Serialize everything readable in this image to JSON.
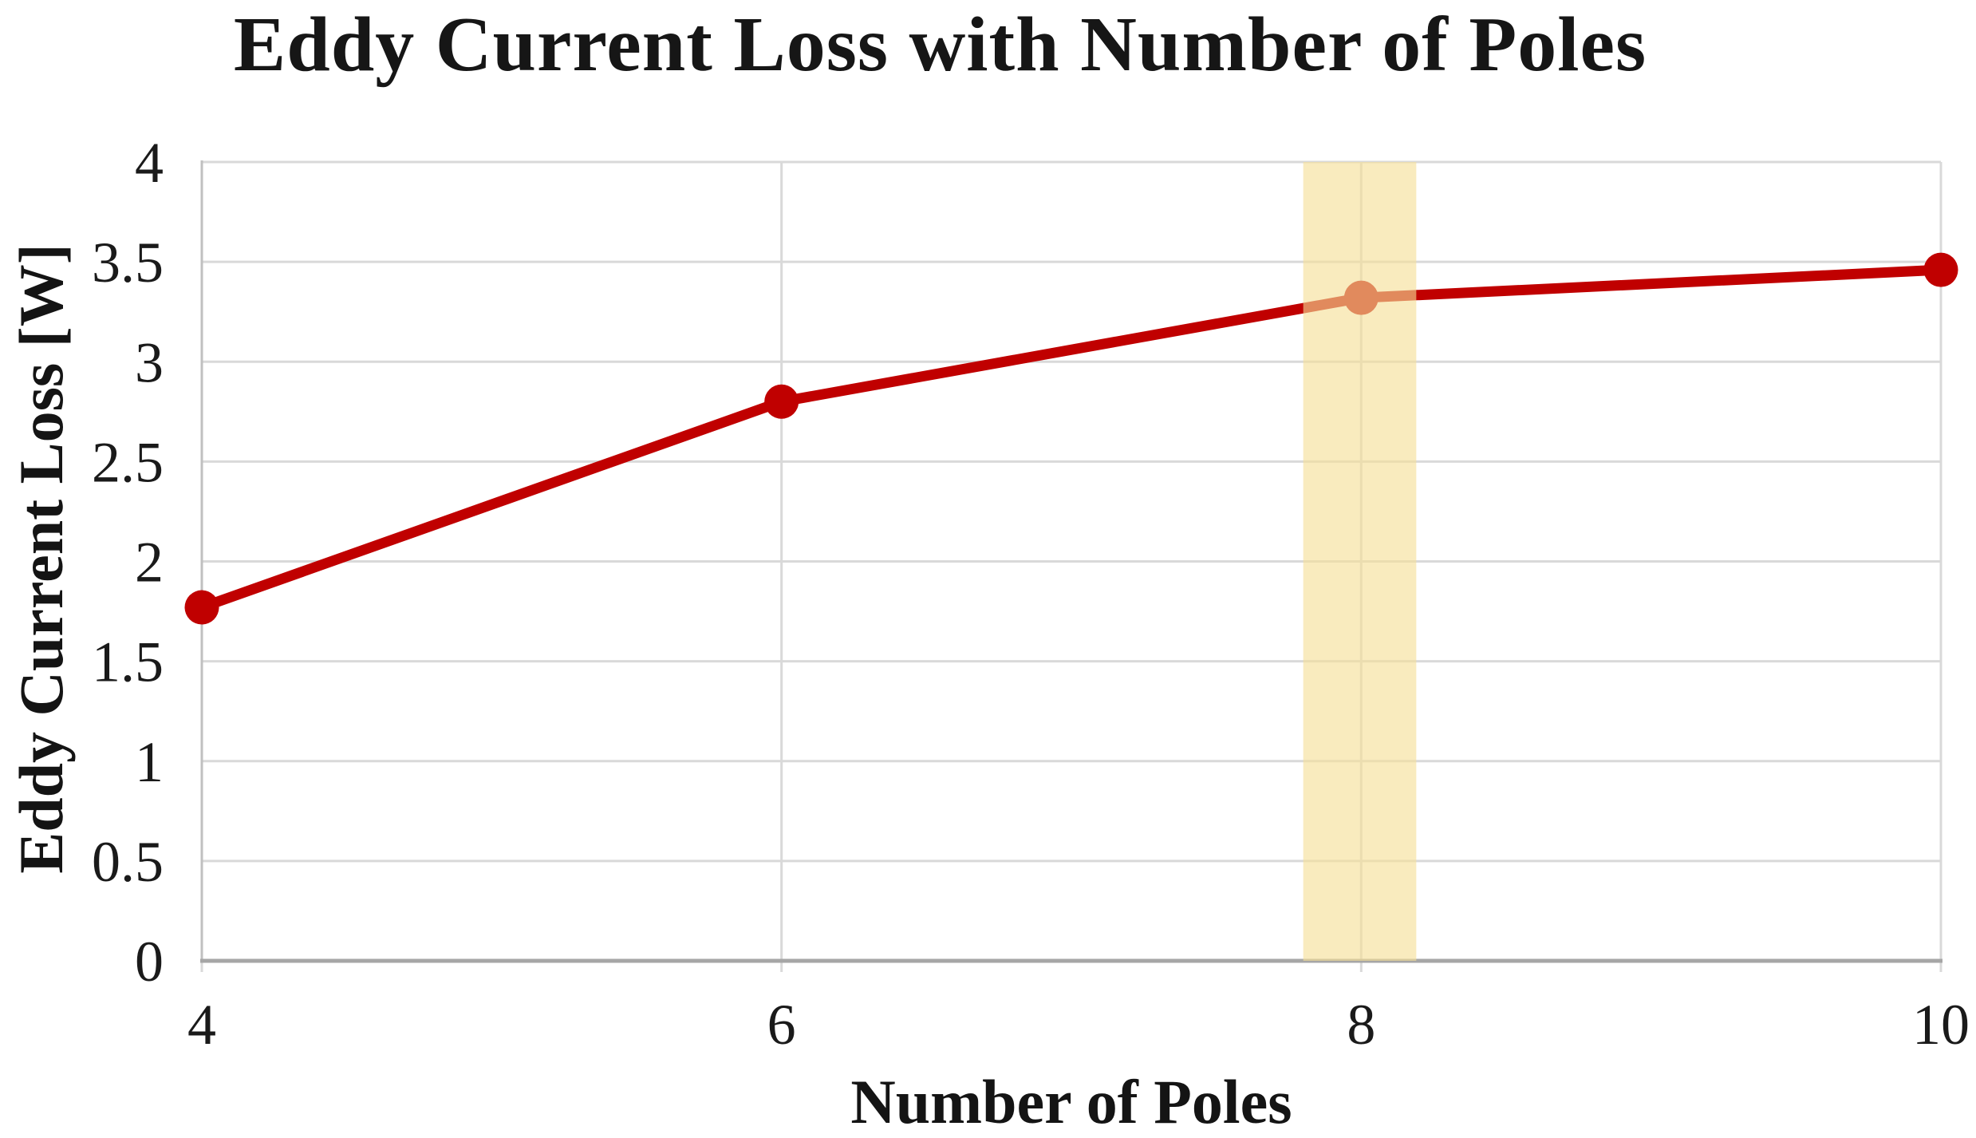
{
  "title": "Eddy Current Loss with Number of Poles",
  "colors": {
    "series_line": "#c00000",
    "marker": "#c00000",
    "highlighted_marker_visible": "#e0764f",
    "highlight_band": "#f6de96",
    "gridline": "#d9d9d9",
    "axis_line": "#a6a6a6",
    "y_axis_line": "#c0c0c0",
    "text": "#141414",
    "background": "#ffffff"
  },
  "chart_data": {
    "type": "line",
    "title": "Eddy Current Loss with Number of Poles",
    "xlabel": "Number of Poles",
    "ylabel": "Eddy Current Loss [W]",
    "x": [
      4,
      6,
      8,
      10
    ],
    "series": [
      {
        "name": "Eddy Current Loss",
        "values": [
          1.77,
          2.8,
          3.32,
          3.46
        ]
      }
    ],
    "xlim": [
      4,
      10
    ],
    "ylim": [
      0,
      4
    ],
    "x_ticks": [
      4,
      6,
      8,
      10
    ],
    "y_ticks": [
      0,
      0.5,
      1,
      1.5,
      2,
      2.5,
      3,
      3.5,
      4
    ],
    "grid": true,
    "legend": false,
    "marker_style": "circle",
    "highlight_band": {
      "x_from": 7.8,
      "x_to": 8.19,
      "opacity": 0.62
    }
  }
}
